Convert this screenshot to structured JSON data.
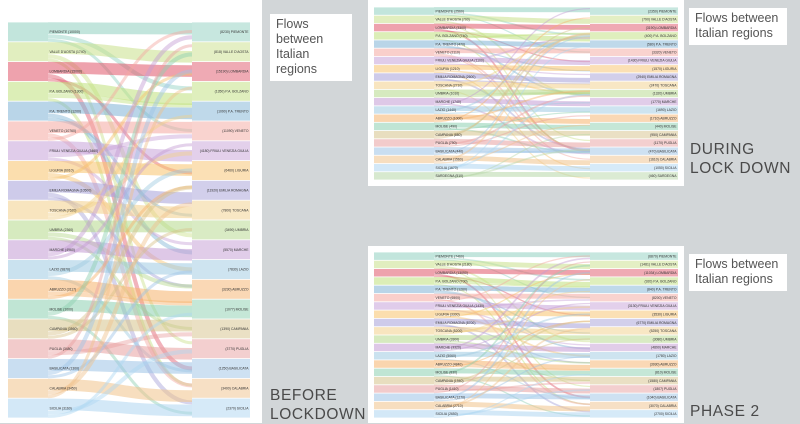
{
  "colors": {
    "background": "#d2d6d8",
    "card": "#ffffff",
    "caption_text": "#555555",
    "phase_text": "#4a4a4a"
  },
  "panels": [
    {
      "id": "before",
      "caption": "Flows between\nItalian regions",
      "phase_label": "BEFORE\nLOCKDOWN",
      "left_nodes": [
        "PIEMONTE (10000)",
        "VALLE D'AOSTA (1740)",
        "LOMBARDIA (15000)",
        "P.A. BOLZANO (1300)",
        "P.A. TRENTO (1200)",
        "VENETO (10760)",
        "FRIULI VENEZIA GIULIA (3460)",
        "LIGURIA (6010)",
        "EMILIA ROMAGNA (10500)",
        "TOSCANA (7620)",
        "UMBRIA (2360)",
        "MARCHE (4960)",
        "LAZIO (9870)",
        "ABRUZZO (3117)",
        "MOLISE (1000)",
        "CAMPANIA (3560)",
        "PUGLIA (3480)",
        "BASILICATA (1300)",
        "CALABRIA (3450)",
        "SICILIA (3160)"
      ],
      "right_nodes": [
        "(8230) PIEMONTE",
        "(818) VALLE D'AOSTA",
        "(15190) LOMBARDIA",
        "(1350) P.A. BOLZANO",
        "(1090) P.A. TRENTO",
        "(11090) VENETO",
        "(4180) FRIULI VENEZIA GIULIA",
        "(6460) LIGURIA",
        "(11920) EMILIA ROMAGNA",
        "(7800) TOSCANA",
        "(3490) UMBRIA",
        "(5570) MARCHE",
        "(7830) LAZIO",
        "(3230) ABRUZZO",
        "(1077) MOLISE",
        "(1390) CAMPANIA",
        "(3770) PUGLIA",
        "(1250) BASILICATA",
        "(3400) CALABRIA",
        "(2370) SICILIA"
      ]
    },
    {
      "id": "during",
      "caption": "Flows between\nItalian regions",
      "phase_label": "DURING\nLOCK DOWN",
      "left_nodes": [
        "PIEMONTE (2560)",
        "VALLE D'AOSTA (700)",
        "LOMBARDIA (3300)",
        "P.A. BOLZANO (740)",
        "P.A. TRENTO (470)",
        "VENETO (2110)",
        "FRIULI VENEZIA GIULIA (1100)",
        "LIGURIA (1210)",
        "EMILIA ROMAGNA (2600)",
        "TOSCANA (2710)",
        "UMBRIA (1010)",
        "MARCHE (1740)",
        "LAZIO (1440)",
        "ABRUZZO (1000)",
        "MOLISE (490)",
        "CAMPANIA (880)",
        "PUGLIA (790)",
        "BASILICATA (440)",
        "CALABRIA (1560)",
        "SICILIA (1670)",
        "SARDEGNA (510)"
      ],
      "right_nodes": [
        "(2350) PIEMONTE",
        "(790) VALLE D'AOSTA",
        "(3190) LOMBARDIA",
        "(400) P.A. BOLZANO",
        "(580) P.A. TRENTO",
        "(3320) VENETO",
        "(1430) FRIULI VENEZIA GIULIA",
        "(1570) LIGURIA",
        "(2940) EMILIA ROMAGNA",
        "(2470) TOSCANA",
        "(1320) UMBRIA",
        "(1770) MARCHE",
        "(1690) LAZIO",
        "(1710) ABRUZZO",
        "(440) MOLISE",
        "(950) CAMPANIA",
        "(1170) PUGLIA",
        "(470) BASILICATA",
        "(1610) CALABRIA",
        "(1050) SICILIA",
        "(460) SARDEGNA"
      ]
    },
    {
      "id": "phase2",
      "caption": "Flows between\nItalian regions",
      "phase_label": "PHASE 2",
      "left_nodes": [
        "PIEMONTE (7460)",
        "VALLE D'AOSTA (2180)",
        "LOMBARDIA (13090)",
        "P.A. BOLZANO (700)",
        "P.A. TRENTO (1260)",
        "VENETO (6500)",
        "FRIULI VENEZIA GIULIA (1430)",
        "LIGURIA (3300)",
        "EMILIA ROMAGNA (8700)",
        "TOSCANA (5200)",
        "UMBRIA (3300)",
        "MARCHE (3320)",
        "LAZIO (5060)",
        "ABRUZZO (4840)",
        "MOLISE (830)",
        "CAMPANIA (1940)",
        "PUGLIA (1410)",
        "BASILICATA (1270)",
        "CALABRIA (2710)",
        "SICILIA (2650)"
      ],
      "right_nodes": [
        "(6870) PIEMONTE",
        "(1481) VALLE D'AOSTA",
        "(11034) LOMBARDIA",
        "(920) P.A. BOLZANO",
        "(840) P.A. TRENTO",
        "(8200) VENETO",
        "(3130) FRIULI VENEZIA GIULIA",
        "(3530) LIGURIA",
        "(6770) EMILIA ROMAGNA",
        "(5250) TOSCANA",
        "(3080) UMBRIA",
        "(4890) MARCHE",
        "(1780) LAZIO",
        "(3930) ABRUZZO",
        "(810) MOLISE",
        "(1580) CAMPANIA",
        "(1807) PUGLIA",
        "(1040) BASILICATA",
        "(3070) CALABRIA",
        "(2700) SICILIA"
      ]
    }
  ]
}
